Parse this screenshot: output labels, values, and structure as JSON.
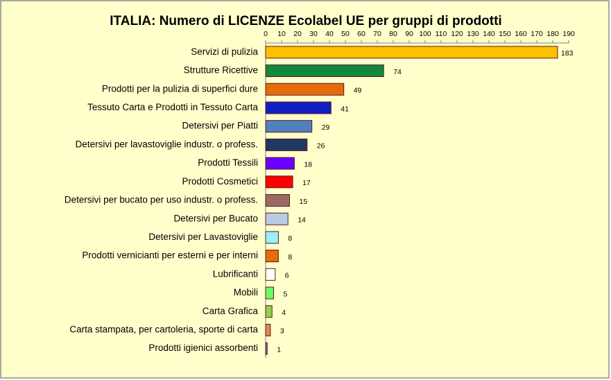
{
  "chart_data": {
    "type": "bar",
    "orientation": "horizontal",
    "title": "ITALIA: Numero di LICENZE  Ecolabel UE per gruppi di prodotti",
    "categories": [
      "Servizi di pulizia",
      "Strutture Ricettive",
      "Prodotti per la pulizia di superfici dure",
      "Tessuto Carta e Prodotti in Tessuto Carta",
      "Detersivi per Piatti",
      "Detersivi per lavastoviglie industr. o profess.",
      "Prodotti Tessili",
      "Prodotti Cosmetici",
      "Detersivi per bucato per uso industr. o profess.",
      "Detersivi per Bucato",
      "Detersivi per Lavastoviglie",
      "Prodotti vernicianti per esterni e per interni",
      "Lubrificanti",
      "Mobili",
      "Carta Grafica",
      "Carta stampata, per cartoleria, sporte di carta",
      "Prodotti igienici assorbenti"
    ],
    "values": [
      183,
      74,
      49,
      41,
      29,
      26,
      18,
      17,
      15,
      14,
      8,
      8,
      6,
      5,
      4,
      3,
      1
    ],
    "colors": [
      "#ffc000",
      "#11893d",
      "#e46c0a",
      "#0f1fc4",
      "#4f81bd",
      "#1f3864",
      "#6a00ff",
      "#ff0000",
      "#9b6b63",
      "#b8cce4",
      "#99f0ff",
      "#e46c0a",
      "#ffffff",
      "#66ff66",
      "#92d050",
      "#e08a50",
      "#8064a2"
    ],
    "xlim": [
      0,
      190
    ],
    "xticks": [
      0,
      10,
      20,
      30,
      40,
      50,
      60,
      70,
      80,
      90,
      100,
      110,
      120,
      130,
      140,
      150,
      160,
      170,
      180,
      190
    ],
    "grid": false
  }
}
